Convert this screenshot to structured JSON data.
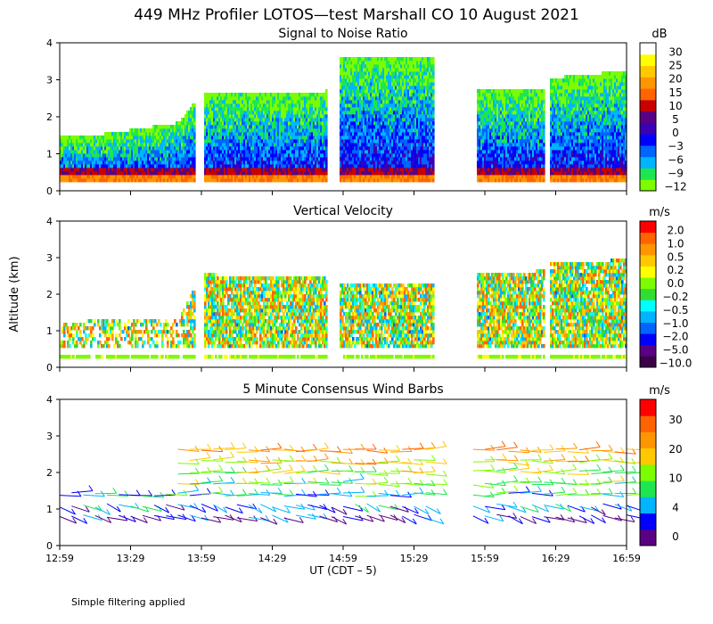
{
  "title": "449 MHz Profiler LOTOS—test Marshall CO 10 August 2021",
  "ylabel": "Altitude (km)",
  "xlabel": "UT  (CDT – 5)",
  "footnote": "Simple filtering applied",
  "colors": {
    "snr": [
      "#7cfc00",
      "#1ee650",
      "#00b4ff",
      "#0064ff",
      "#0000ff",
      "#3c00b4",
      "#5a0082",
      "#c80000",
      "#ff6400",
      "#ff9600",
      "#ffc800",
      "#ffff00",
      "#ffffff"
    ],
    "vel": [
      "#3c0046",
      "#5a0082",
      "#0000ff",
      "#0064ff",
      "#00b4ff",
      "#00ffff",
      "#32dc32",
      "#7cfc00",
      "#ffff00",
      "#ffc800",
      "#ff9600",
      "#ff6400",
      "#ff0000"
    ],
    "wind": [
      "#5a0082",
      "#0000ff",
      "#00b4ff",
      "#1ee650",
      "#7cfc00",
      "#ffc800",
      "#ff9600",
      "#ff6400",
      "#ff0000"
    ]
  },
  "chart_data": [
    {
      "type": "heatmap",
      "title": "Signal to Noise Ratio",
      "unit": "dB",
      "ylim": [
        0,
        4
      ],
      "yticks": [
        "0",
        "1",
        "2",
        "3",
        "4"
      ],
      "xticks": [
        "12:59",
        "13:29",
        "13:59",
        "14:29",
        "14:59",
        "15:29",
        "15:59",
        "16:29",
        "16:59"
      ],
      "xlim_minutes": [
        0,
        240
      ],
      "colorbar_labels": [
        "30",
        "25",
        "20",
        "15",
        "10",
        "5",
        "0",
        "−3",
        "−6",
        "−9",
        "−12"
      ],
      "gaps_minutes": [
        [
          57,
          61
        ],
        [
          113,
          118
        ],
        [
          158,
          176
        ],
        [
          205,
          207
        ]
      ],
      "data_top_km": [
        [
          0,
          1.4
        ],
        [
          20,
          1.5
        ],
        [
          40,
          1.7
        ],
        [
          50,
          1.8
        ],
        [
          60,
          2.6
        ],
        [
          90,
          2.6
        ],
        [
          112,
          2.6
        ],
        [
          118,
          3.6
        ],
        [
          158,
          3.6
        ],
        [
          176,
          2.7
        ],
        [
          205,
          2.7
        ],
        [
          207,
          3.0
        ],
        [
          240,
          3.2
        ]
      ]
    },
    {
      "type": "heatmap",
      "title": "Vertical Velocity",
      "unit": "m/s",
      "ylim": [
        0,
        4
      ],
      "yticks": [
        "0",
        "1",
        "2",
        "3",
        "4"
      ],
      "xticks": [
        "12:59",
        "13:29",
        "13:59",
        "14:29",
        "14:59",
        "15:29",
        "15:59",
        "16:29",
        "16:59"
      ],
      "xlim_minutes": [
        0,
        240
      ],
      "colorbar_labels": [
        "2.0",
        "1.0",
        "0.5",
        "0.2",
        "0.0",
        "−0.2",
        "−0.5",
        "−1.0",
        "−2.0",
        "−5.0",
        "−10.0"
      ],
      "gaps_minutes": [
        [
          57,
          61
        ],
        [
          113,
          118
        ],
        [
          158,
          176
        ],
        [
          205,
          207
        ]
      ],
      "data_top_km": [
        [
          0,
          1.2
        ],
        [
          50,
          1.3
        ],
        [
          60,
          2.5
        ],
        [
          112,
          2.4
        ],
        [
          118,
          2.2
        ],
        [
          158,
          2.2
        ],
        [
          176,
          2.5
        ],
        [
          205,
          2.6
        ],
        [
          207,
          2.8
        ],
        [
          240,
          2.9
        ]
      ]
    },
    {
      "type": "scatter",
      "title": "5 Minute Consensus Wind Barbs",
      "unit": "m/s",
      "ylim": [
        0,
        4
      ],
      "yticks": [
        "0",
        "1",
        "2",
        "3",
        "4"
      ],
      "xticks": [
        "12:59",
        "13:29",
        "13:59",
        "14:29",
        "14:59",
        "15:29",
        "15:59",
        "16:29",
        "16:59"
      ],
      "xlim_minutes": [
        0,
        240
      ],
      "colorbar_labels": [
        "30",
        "20",
        "10",
        "4",
        "0"
      ],
      "barb_heights_km": [
        0.8,
        1.1,
        1.4,
        1.7,
        2.0,
        2.3,
        2.6
      ],
      "barb_times_minutes": [
        0,
        5,
        10,
        15,
        20,
        25,
        30,
        35,
        40,
        45,
        50,
        55,
        60,
        65,
        70,
        75,
        80,
        85,
        90,
        95,
        100,
        105,
        110,
        115,
        120,
        125,
        130,
        135,
        140,
        145,
        150,
        155,
        160,
        165,
        170,
        175,
        180,
        185,
        190,
        195,
        200,
        205,
        210,
        215,
        220,
        225,
        230,
        235,
        240
      ]
    }
  ]
}
